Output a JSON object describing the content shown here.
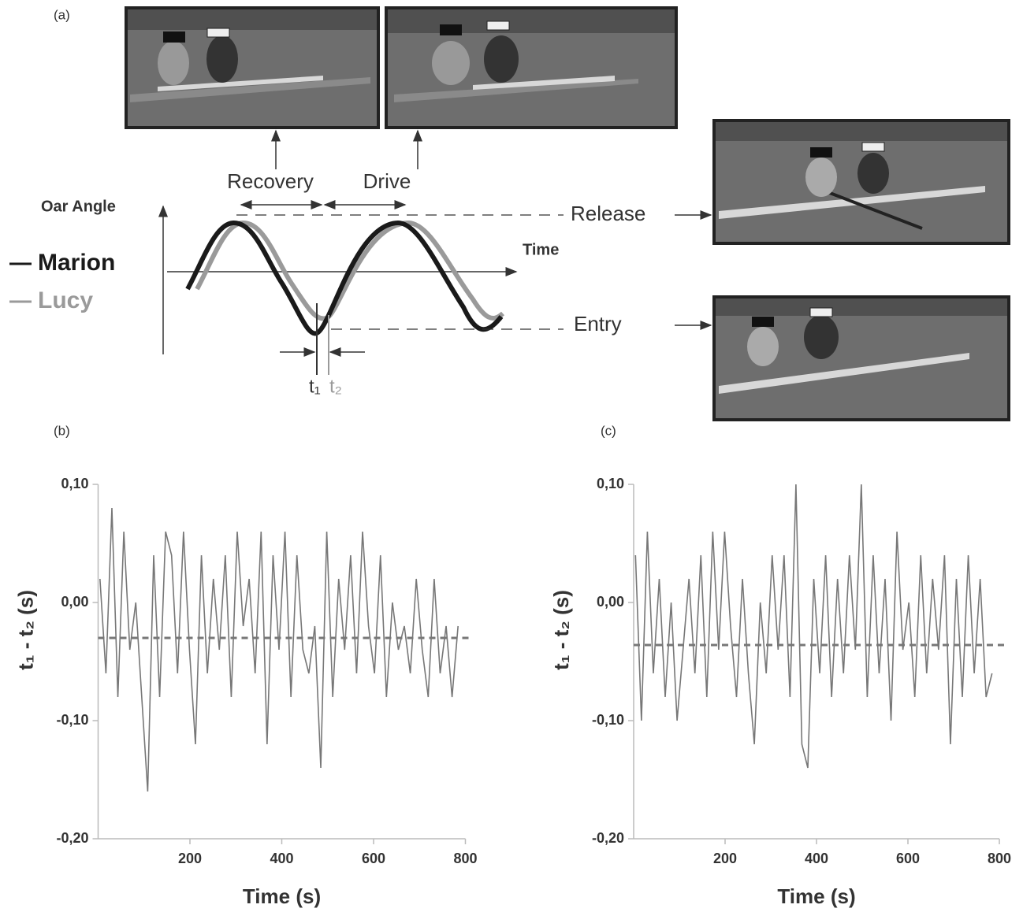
{
  "panel_a": {
    "label": "(a)",
    "y_axis_label": "Oar Angle",
    "x_axis_label": "Time",
    "legend": [
      {
        "name": "Marion",
        "color": "#1a1a1a"
      },
      {
        "name": "Lucy",
        "color": "#9a9a9a"
      }
    ],
    "phases": [
      "Recovery",
      "Drive"
    ],
    "events": [
      "Release",
      "Entry"
    ],
    "markers": [
      "t₁",
      "t₂"
    ]
  },
  "chart_data": [
    {
      "panel_label": "(b)",
      "type": "line",
      "x_label": "Time (s)",
      "y_label": "t₁ - t₂ (s)",
      "color": "#777777",
      "x": [
        4,
        17,
        30,
        43,
        56,
        69,
        82,
        95,
        108,
        121,
        134,
        147,
        160,
        173,
        186,
        199,
        212,
        225,
        238,
        251,
        264,
        277,
        290,
        303,
        316,
        329,
        342,
        355,
        368,
        381,
        394,
        407,
        420,
        433,
        446,
        459,
        472,
        485,
        498,
        511,
        524,
        537,
        550,
        563,
        576,
        589,
        602,
        615,
        628,
        641,
        654,
        667,
        680,
        693,
        706,
        719,
        732,
        745,
        758,
        771,
        784
      ],
      "values": [
        0.02,
        -0.06,
        0.08,
        -0.08,
        0.06,
        -0.04,
        0.0,
        -0.08,
        -0.16,
        0.04,
        -0.08,
        0.06,
        0.04,
        -0.06,
        0.06,
        -0.04,
        -0.12,
        0.04,
        -0.06,
        0.02,
        -0.04,
        0.04,
        -0.08,
        0.06,
        -0.02,
        0.02,
        -0.06,
        0.06,
        -0.12,
        0.04,
        -0.04,
        0.06,
        -0.08,
        0.04,
        -0.04,
        -0.06,
        -0.02,
        -0.14,
        0.06,
        -0.08,
        0.02,
        -0.04,
        0.04,
        -0.06,
        0.06,
        -0.02,
        -0.06,
        0.04,
        -0.08,
        0.0,
        -0.04,
        -0.02,
        -0.06,
        0.02,
        -0.04,
        -0.08,
        0.02,
        -0.06,
        -0.02,
        -0.08,
        -0.02
      ],
      "mean_line": -0.03,
      "xlim": [
        0,
        800
      ],
      "xticks": [
        200,
        400,
        600,
        800
      ],
      "ylim": [
        -0.2,
        0.1
      ],
      "yticks": [
        {
          "value": 0.1,
          "label": "0,10"
        },
        {
          "value": 0,
          "label": "0,00"
        },
        {
          "value": -0.1,
          "label": "-0,10"
        },
        {
          "value": -0.2,
          "label": "-0,20"
        }
      ]
    },
    {
      "panel_label": "(c)",
      "type": "line",
      "x_label": "Time (s)",
      "y_label": "t₁ - t₂ (s)",
      "color": "#777777",
      "x": [
        4,
        17,
        30,
        43,
        56,
        69,
        82,
        95,
        108,
        121,
        134,
        147,
        160,
        173,
        186,
        199,
        212,
        225,
        238,
        251,
        264,
        277,
        290,
        303,
        316,
        329,
        342,
        355,
        368,
        381,
        394,
        407,
        420,
        433,
        446,
        459,
        472,
        485,
        498,
        511,
        524,
        537,
        550,
        563,
        576,
        589,
        602,
        615,
        628,
        641,
        654,
        667,
        680,
        693,
        706,
        719,
        732,
        745,
        758,
        771,
        784
      ],
      "values": [
        0.04,
        -0.1,
        0.06,
        -0.06,
        0.02,
        -0.08,
        0.0,
        -0.1,
        -0.04,
        0.02,
        -0.06,
        0.04,
        -0.08,
        0.06,
        -0.04,
        0.06,
        -0.02,
        -0.08,
        0.02,
        -0.06,
        -0.12,
        0.0,
        -0.06,
        0.04,
        -0.04,
        0.04,
        -0.08,
        0.1,
        -0.12,
        -0.14,
        0.02,
        -0.06,
        0.04,
        -0.08,
        0.02,
        -0.06,
        0.04,
        -0.04,
        0.1,
        -0.08,
        0.04,
        -0.06,
        0.02,
        -0.1,
        0.06,
        -0.04,
        0.0,
        -0.08,
        0.04,
        -0.06,
        0.02,
        -0.04,
        0.04,
        -0.12,
        0.02,
        -0.08,
        0.04,
        -0.06,
        0.02,
        -0.08,
        -0.06
      ],
      "mean_line": -0.036,
      "xlim": [
        0,
        800
      ],
      "xticks": [
        200,
        400,
        600,
        800
      ],
      "ylim": [
        -0.2,
        0.1
      ],
      "yticks": [
        {
          "value": 0.1,
          "label": "0,10"
        },
        {
          "value": 0,
          "label": "0,00"
        },
        {
          "value": -0.1,
          "label": "-0,10"
        },
        {
          "value": -0.2,
          "label": "-0,20"
        }
      ]
    }
  ]
}
